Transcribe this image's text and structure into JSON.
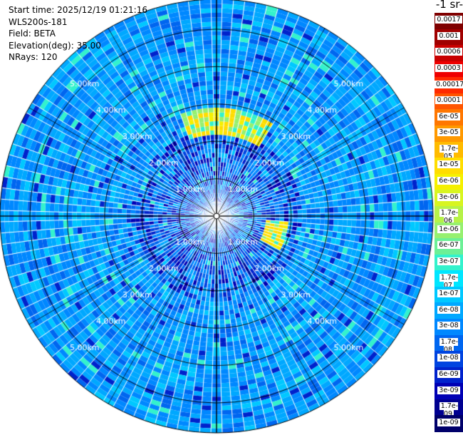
{
  "header": {
    "start_time": "Start time: 2025/12/19 01:21:16",
    "instrument": "WLS200s-181",
    "field": "Field: BETA",
    "elevation": "Elevation(deg): 35.00",
    "nrays": "NRays: 120"
  },
  "colorbar": {
    "title": "-1 sr-",
    "labels": [
      "0.0017",
      "0.001",
      "0.0006",
      "0.0003",
      "0.00017",
      "0.0001",
      "6e-05",
      "3e-05",
      "1.7e-05",
      "1e-05",
      "6e-06",
      "3e-06",
      "1.7e-06",
      "1e-06",
      "6e-07",
      "3e-07",
      "1.7e-07",
      "1e-07",
      "6e-08",
      "3e-08",
      "1.7e-08",
      "1e-08",
      "6e-09",
      "3e-09",
      "1.7e-09",
      "1e-09"
    ],
    "colors": [
      "#7f0000",
      "#a00000",
      "#c80000",
      "#ee0000",
      "#ff2a00",
      "#ff5500",
      "#ff7700",
      "#ff9900",
      "#ffbb00",
      "#ffdd00",
      "#f5f000",
      "#d8f520",
      "#b6f248",
      "#96f070",
      "#6cf096",
      "#33f2cc",
      "#00e6ff",
      "#00c8ff",
      "#00a8ff",
      "#0088ff",
      "#0066f0",
      "#0044e0",
      "#0022cc",
      "#0000b4",
      "#000090",
      "#00006a"
    ]
  },
  "chart_data": {
    "type": "heatmap",
    "projection": "polar PPI",
    "range_ring_labels": [
      "1.00km",
      "2.00km",
      "3.00km",
      "4.00km",
      "5.00km"
    ],
    "range_rings_km": [
      1,
      2,
      3,
      4,
      5
    ],
    "max_range_km": 5.8,
    "n_rays": 120,
    "dominant_class": "1e-07 to 3e-08",
    "features": [
      {
        "description": "enhanced backscatter arc",
        "azimuth_deg": [
          340,
          30
        ],
        "range_km": [
          2.2,
          2.9
        ],
        "level": "1.7e-05"
      },
      {
        "description": "enhanced backscatter patch",
        "azimuth_deg": [
          95,
          118
        ],
        "range_km": [
          1.3,
          1.9
        ],
        "level": "1.7e-05"
      },
      {
        "description": "low backscatter core",
        "range_km": [
          0,
          2.3
        ],
        "level": "1e-08"
      }
    ]
  }
}
